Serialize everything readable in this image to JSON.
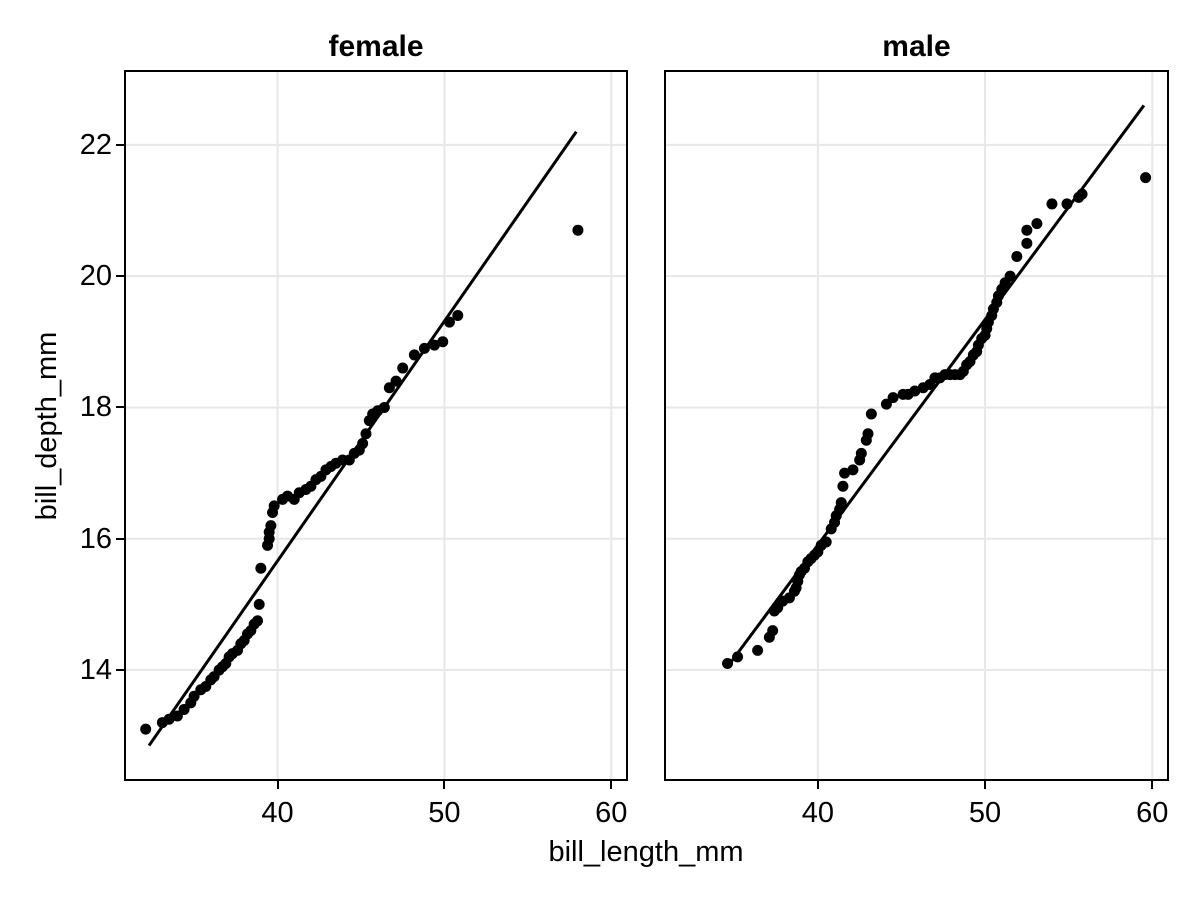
{
  "chart_data": {
    "type": "scatter",
    "title": "",
    "xlabel": "bill_length_mm",
    "ylabel": "bill_depth_mm",
    "xlim": [
      30.8,
      61.0
    ],
    "ylim": [
      12.31,
      23.14
    ],
    "x_ticks": [
      40,
      50,
      60
    ],
    "y_ticks": [
      14,
      16,
      18,
      20,
      22
    ],
    "grid": true,
    "legend": "none",
    "colors": {
      "background": "#ffffff",
      "grid": "#e7e7e7",
      "border": "#000000",
      "point": "#000000",
      "line": "#000000",
      "text": "#000000"
    },
    "marker_radius": 5.5,
    "line_width": 3,
    "panels": [
      {
        "title": "female",
        "line": {
          "x1": 32.3,
          "y1": 12.85,
          "x2": 57.9,
          "y2": 22.2
        },
        "points": [
          [
            32.1,
            13.1
          ],
          [
            33.1,
            13.2
          ],
          [
            33.5,
            13.25
          ],
          [
            34.0,
            13.3
          ],
          [
            34.4,
            13.4
          ],
          [
            34.8,
            13.5
          ],
          [
            35.0,
            13.6
          ],
          [
            35.4,
            13.7
          ],
          [
            35.7,
            13.75
          ],
          [
            36.0,
            13.85
          ],
          [
            36.2,
            13.9
          ],
          [
            36.5,
            14.0
          ],
          [
            36.7,
            14.05
          ],
          [
            36.9,
            14.1
          ],
          [
            37.1,
            14.2
          ],
          [
            37.3,
            14.25
          ],
          [
            37.6,
            14.3
          ],
          [
            37.8,
            14.4
          ],
          [
            38.0,
            14.45
          ],
          [
            38.2,
            14.55
          ],
          [
            38.4,
            14.6
          ],
          [
            38.6,
            14.7
          ],
          [
            38.8,
            14.75
          ],
          [
            38.9,
            15.0
          ],
          [
            39.0,
            15.55
          ],
          [
            39.4,
            15.9
          ],
          [
            39.5,
            16.0
          ],
          [
            39.5,
            16.1
          ],
          [
            39.6,
            16.2
          ],
          [
            39.7,
            16.4
          ],
          [
            39.8,
            16.5
          ],
          [
            40.3,
            16.6
          ],
          [
            40.6,
            16.65
          ],
          [
            41.0,
            16.6
          ],
          [
            41.3,
            16.7
          ],
          [
            41.7,
            16.75
          ],
          [
            42.0,
            16.8
          ],
          [
            42.3,
            16.9
          ],
          [
            42.6,
            16.95
          ],
          [
            42.9,
            17.05
          ],
          [
            43.2,
            17.1
          ],
          [
            43.5,
            17.15
          ],
          [
            43.9,
            17.2
          ],
          [
            44.3,
            17.2
          ],
          [
            44.6,
            17.3
          ],
          [
            44.9,
            17.35
          ],
          [
            45.1,
            17.45
          ],
          [
            45.3,
            17.6
          ],
          [
            45.5,
            17.8
          ],
          [
            45.7,
            17.9
          ],
          [
            46.0,
            17.95
          ],
          [
            46.4,
            18.0
          ],
          [
            46.7,
            18.3
          ],
          [
            47.1,
            18.4
          ],
          [
            47.5,
            18.6
          ],
          [
            48.2,
            18.8
          ],
          [
            48.8,
            18.9
          ],
          [
            49.4,
            18.95
          ],
          [
            49.9,
            19.0
          ],
          [
            50.3,
            19.3
          ],
          [
            50.8,
            19.4
          ],
          [
            58.0,
            20.7
          ]
        ]
      },
      {
        "title": "male",
        "line": {
          "x1": 34.6,
          "y1": 14.05,
          "x2": 59.5,
          "y2": 22.6
        },
        "points": [
          [
            34.6,
            14.1
          ],
          [
            35.2,
            14.2
          ],
          [
            36.4,
            14.3
          ],
          [
            37.1,
            14.5
          ],
          [
            37.3,
            14.6
          ],
          [
            37.4,
            14.9
          ],
          [
            37.6,
            14.95
          ],
          [
            37.9,
            15.05
          ],
          [
            38.3,
            15.1
          ],
          [
            38.6,
            15.2
          ],
          [
            38.7,
            15.25
          ],
          [
            38.8,
            15.35
          ],
          [
            38.9,
            15.45
          ],
          [
            39.0,
            15.5
          ],
          [
            39.2,
            15.55
          ],
          [
            39.4,
            15.65
          ],
          [
            39.6,
            15.7
          ],
          [
            39.8,
            15.75
          ],
          [
            40.0,
            15.8
          ],
          [
            40.2,
            15.9
          ],
          [
            40.5,
            15.95
          ],
          [
            40.8,
            16.15
          ],
          [
            41.0,
            16.25
          ],
          [
            41.1,
            16.35
          ],
          [
            41.3,
            16.45
          ],
          [
            41.4,
            16.55
          ],
          [
            41.5,
            16.8
          ],
          [
            41.6,
            17.0
          ],
          [
            42.1,
            17.05
          ],
          [
            42.5,
            17.2
          ],
          [
            42.6,
            17.3
          ],
          [
            42.9,
            17.5
          ],
          [
            43.0,
            17.6
          ],
          [
            43.2,
            17.9
          ],
          [
            44.1,
            18.05
          ],
          [
            44.5,
            18.15
          ],
          [
            45.1,
            18.2
          ],
          [
            45.4,
            18.2
          ],
          [
            45.8,
            18.25
          ],
          [
            46.3,
            18.3
          ],
          [
            46.7,
            18.35
          ],
          [
            47.0,
            18.45
          ],
          [
            47.3,
            18.45
          ],
          [
            47.6,
            18.5
          ],
          [
            47.9,
            18.5
          ],
          [
            48.2,
            18.5
          ],
          [
            48.5,
            18.5
          ],
          [
            48.7,
            18.55
          ],
          [
            48.9,
            18.65
          ],
          [
            49.1,
            18.7
          ],
          [
            49.3,
            18.8
          ],
          [
            49.5,
            18.85
          ],
          [
            49.6,
            18.95
          ],
          [
            49.8,
            19.05
          ],
          [
            50.0,
            19.1
          ],
          [
            50.1,
            19.2
          ],
          [
            50.2,
            19.3
          ],
          [
            50.4,
            19.4
          ],
          [
            50.5,
            19.5
          ],
          [
            50.7,
            19.6
          ],
          [
            50.8,
            19.7
          ],
          [
            51.0,
            19.8
          ],
          [
            51.2,
            19.9
          ],
          [
            51.5,
            20.0
          ],
          [
            51.9,
            20.3
          ],
          [
            52.5,
            20.5
          ],
          [
            52.5,
            20.7
          ],
          [
            53.1,
            20.8
          ],
          [
            54.0,
            21.1
          ],
          [
            54.9,
            21.1
          ],
          [
            55.6,
            21.2
          ],
          [
            55.8,
            21.25
          ],
          [
            59.6,
            21.5
          ]
        ]
      }
    ]
  }
}
